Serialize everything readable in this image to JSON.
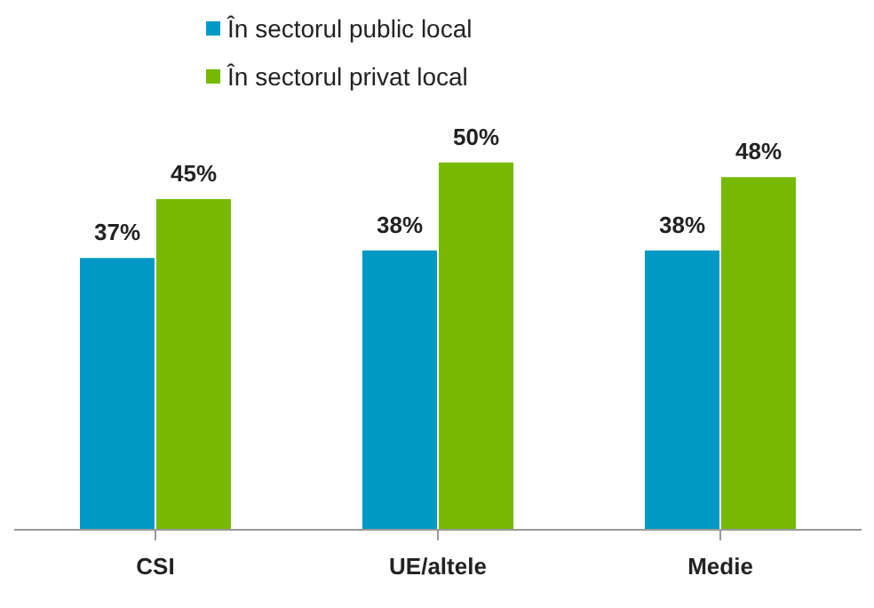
{
  "chart_data": {
    "type": "bar",
    "categories": [
      "CSI",
      "UE/altele",
      "Medie"
    ],
    "series": [
      {
        "name": "În sectorul public local",
        "color": "#0099c6",
        "values": [
          37,
          38,
          38
        ],
        "value_labels": [
          "37%",
          "38%",
          "38%"
        ]
      },
      {
        "name": "În sectorul privat local",
        "color": "#76b900",
        "values": [
          45,
          50,
          48
        ],
        "value_labels": [
          "45%",
          "50%",
          "48%"
        ]
      }
    ],
    "tick_labels": "x",
    "grid": false,
    "legend": "top"
  }
}
